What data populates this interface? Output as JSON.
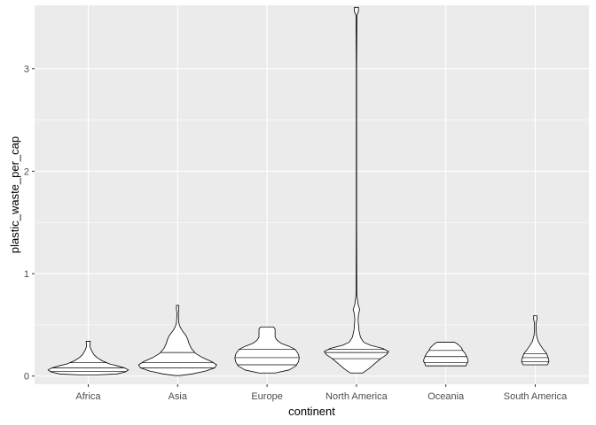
{
  "chart_data": {
    "type": "violin",
    "xlabel": "continent",
    "ylabel": "plastic_waste_per_cap",
    "ylim": [
      -0.08,
      3.62
    ],
    "y_ticks": [
      0,
      1,
      2,
      3
    ],
    "grid": true,
    "draw_quantiles": [
      0.25,
      0.5,
      0.75
    ],
    "panel_background": "#ebebeb",
    "grid_major_color": "#ffffff",
    "outline_color": "#000000",
    "fill_color": "#ffffff",
    "categories": [
      "Africa",
      "Asia",
      "Europe",
      "North America",
      "Oceania",
      "South America"
    ],
    "series": [
      {
        "category": "Africa",
        "min": 0.01,
        "max": 0.34,
        "quantiles": [
          0.045,
          0.08,
          0.13
        ],
        "profile": [
          [
            0.01,
            0.1
          ],
          [
            0.02,
            0.7
          ],
          [
            0.04,
            0.92
          ],
          [
            0.06,
            1.0
          ],
          [
            0.08,
            0.9
          ],
          [
            0.1,
            0.72
          ],
          [
            0.12,
            0.52
          ],
          [
            0.15,
            0.34
          ],
          [
            0.18,
            0.22
          ],
          [
            0.21,
            0.14
          ],
          [
            0.25,
            0.08
          ],
          [
            0.28,
            0.05
          ],
          [
            0.3,
            0.04
          ],
          [
            0.32,
            0.05
          ],
          [
            0.34,
            0.05
          ]
        ]
      },
      {
        "category": "Asia",
        "min": 0.005,
        "max": 0.69,
        "quantiles": [
          0.08,
          0.13,
          0.23
        ],
        "profile": [
          [
            0.005,
            0.05
          ],
          [
            0.02,
            0.35
          ],
          [
            0.05,
            0.7
          ],
          [
            0.08,
            0.92
          ],
          [
            0.11,
            0.97
          ],
          [
            0.14,
            0.85
          ],
          [
            0.18,
            0.62
          ],
          [
            0.22,
            0.45
          ],
          [
            0.27,
            0.34
          ],
          [
            0.32,
            0.28
          ],
          [
            0.36,
            0.25
          ],
          [
            0.4,
            0.2
          ],
          [
            0.44,
            0.12
          ],
          [
            0.48,
            0.06
          ],
          [
            0.52,
            0.03
          ],
          [
            0.58,
            0.02
          ],
          [
            0.62,
            0.02
          ],
          [
            0.65,
            0.03
          ],
          [
            0.69,
            0.03
          ]
        ]
      },
      {
        "category": "Europe",
        "min": 0.03,
        "max": 0.48,
        "quantiles": [
          0.11,
          0.18,
          0.26
        ],
        "profile": [
          [
            0.03,
            0.2
          ],
          [
            0.06,
            0.55
          ],
          [
            0.1,
            0.72
          ],
          [
            0.14,
            0.78
          ],
          [
            0.18,
            0.8
          ],
          [
            0.22,
            0.77
          ],
          [
            0.26,
            0.7
          ],
          [
            0.29,
            0.55
          ],
          [
            0.32,
            0.35
          ],
          [
            0.35,
            0.25
          ],
          [
            0.38,
            0.2
          ],
          [
            0.41,
            0.2
          ],
          [
            0.44,
            0.2
          ],
          [
            0.46,
            0.2
          ],
          [
            0.48,
            0.16
          ]
        ]
      },
      {
        "category": "North America",
        "min": 0.03,
        "max": 3.6,
        "quantiles": [
          0.17,
          0.23,
          0.26
        ],
        "profile": [
          [
            0.03,
            0.15
          ],
          [
            0.07,
            0.3
          ],
          [
            0.12,
            0.45
          ],
          [
            0.17,
            0.6
          ],
          [
            0.21,
            0.75
          ],
          [
            0.24,
            0.8
          ],
          [
            0.27,
            0.65
          ],
          [
            0.3,
            0.35
          ],
          [
            0.33,
            0.18
          ],
          [
            0.38,
            0.1
          ],
          [
            0.45,
            0.06
          ],
          [
            0.55,
            0.04
          ],
          [
            0.6,
            0.05
          ],
          [
            0.65,
            0.08
          ],
          [
            0.7,
            0.04
          ],
          [
            0.8,
            0.008
          ],
          [
            1.5,
            0.004
          ],
          [
            3.0,
            0.004
          ],
          [
            3.52,
            0.01
          ],
          [
            3.56,
            0.05
          ],
          [
            3.6,
            0.05
          ]
        ]
      },
      {
        "category": "Oceania",
        "min": 0.1,
        "max": 0.33,
        "quantiles": [
          0.13,
          0.19,
          0.25
        ],
        "profile": [
          [
            0.1,
            0.5
          ],
          [
            0.12,
            0.52
          ],
          [
            0.14,
            0.55
          ],
          [
            0.16,
            0.55
          ],
          [
            0.19,
            0.52
          ],
          [
            0.22,
            0.48
          ],
          [
            0.25,
            0.42
          ],
          [
            0.28,
            0.38
          ],
          [
            0.31,
            0.3
          ],
          [
            0.33,
            0.22
          ]
        ]
      },
      {
        "category": "South America",
        "min": 0.11,
        "max": 0.59,
        "quantiles": [
          0.14,
          0.18,
          0.22
        ],
        "profile": [
          [
            0.11,
            0.3
          ],
          [
            0.14,
            0.34
          ],
          [
            0.18,
            0.32
          ],
          [
            0.22,
            0.28
          ],
          [
            0.26,
            0.2
          ],
          [
            0.3,
            0.13
          ],
          [
            0.34,
            0.07
          ],
          [
            0.4,
            0.03
          ],
          [
            0.46,
            0.02
          ],
          [
            0.52,
            0.02
          ],
          [
            0.55,
            0.04
          ],
          [
            0.59,
            0.04
          ]
        ]
      }
    ]
  }
}
